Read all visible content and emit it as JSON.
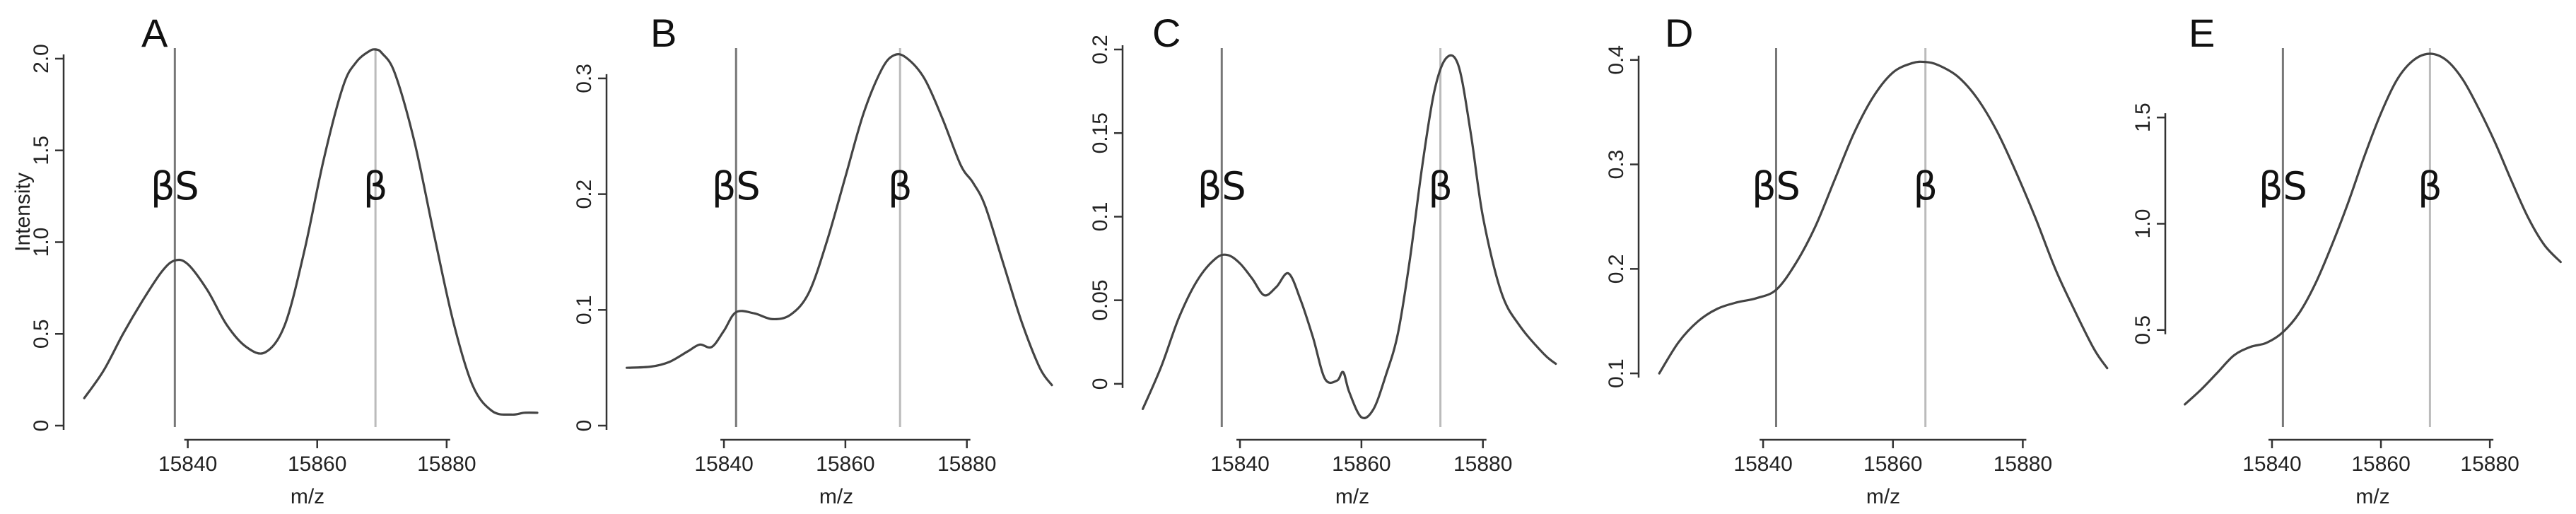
{
  "figure": {
    "ylabel": "Intensity",
    "xlabel": "m/z"
  },
  "colors": {
    "curve": "#444444",
    "beta_s_marker": "#777777",
    "beta_marker": "#bbbbbb"
  },
  "chart_data": [
    {
      "type": "line",
      "panel": "A",
      "title": "",
      "xlabel": "m/z",
      "ylabel": "Intensity",
      "xlim": [
        15823,
        15894
      ],
      "ylim": [
        0,
        2.05
      ],
      "xticks": [
        15840,
        15860,
        15880
      ],
      "yticks": [
        0,
        0.5,
        1.0,
        1.5,
        2.0
      ],
      "ytick_labels": [
        "0",
        "0.5",
        "1.0",
        "1.5",
        "2.0"
      ],
      "markers": [
        {
          "label": "βS",
          "x": 15838,
          "color": "#777777"
        },
        {
          "label": "β",
          "x": 15869,
          "color": "#bbbbbb"
        }
      ],
      "series": [
        {
          "x": [
            15824,
            15827,
            15830,
            15833,
            15836,
            15838,
            15840,
            15843,
            15846,
            15849,
            15852,
            15855,
            15858,
            15861,
            15864,
            15866,
            15868,
            15869,
            15870,
            15872,
            15875,
            15878,
            15881,
            15884,
            15887,
            15890,
            15892,
            15894
          ],
          "y": [
            0.15,
            0.3,
            0.5,
            0.68,
            0.84,
            0.9,
            0.88,
            0.74,
            0.55,
            0.43,
            0.4,
            0.55,
            0.95,
            1.45,
            1.85,
            1.98,
            2.04,
            2.05,
            2.03,
            1.92,
            1.55,
            1.05,
            0.57,
            0.22,
            0.08,
            0.06,
            0.07,
            0.07
          ]
        }
      ]
    },
    {
      "type": "line",
      "panel": "B",
      "title": "",
      "xlabel": "m/z",
      "ylabel": "",
      "xlim": [
        15823,
        15894
      ],
      "ylim": [
        0,
        0.325
      ],
      "xticks": [
        15840,
        15860,
        15880
      ],
      "yticks": [
        0,
        0.1,
        0.2,
        0.3
      ],
      "ytick_labels": [
        "0",
        "0.1",
        "0.2",
        "0.3"
      ],
      "markers": [
        {
          "label": "βS",
          "x": 15842,
          "color": "#777777"
        },
        {
          "label": "β",
          "x": 15869,
          "color": "#bbbbbb"
        }
      ],
      "series": [
        {
          "x": [
            15824,
            15828,
            15831,
            15834,
            15836,
            15838,
            15840,
            15842,
            15845,
            15848,
            15851,
            15854,
            15857,
            15860,
            15863,
            15866,
            15868,
            15870,
            15873,
            15876,
            15879,
            15881,
            15883,
            15886,
            15889,
            15892,
            15894
          ],
          "y": [
            0.05,
            0.051,
            0.055,
            0.064,
            0.07,
            0.068,
            0.082,
            0.098,
            0.097,
            0.092,
            0.096,
            0.115,
            0.16,
            0.215,
            0.27,
            0.308,
            0.32,
            0.318,
            0.3,
            0.265,
            0.225,
            0.21,
            0.19,
            0.14,
            0.09,
            0.05,
            0.035
          ]
        }
      ]
    },
    {
      "type": "line",
      "panel": "C",
      "title": "",
      "xlabel": "m/z",
      "ylabel": "",
      "xlim": [
        15823,
        15894
      ],
      "ylim": [
        -0.025,
        0.2
      ],
      "xticks": [
        15840,
        15860,
        15880
      ],
      "yticks": [
        0,
        0.05,
        0.1,
        0.15,
        0.2
      ],
      "ytick_labels": [
        "0",
        "0.05",
        "0.1",
        "0.15",
        "0.2"
      ],
      "markers": [
        {
          "label": "βS",
          "x": 15837,
          "color": "#777777"
        },
        {
          "label": "β",
          "x": 15873,
          "color": "#bbbbbb"
        }
      ],
      "series": [
        {
          "x": [
            15824,
            15827,
            15830,
            15833,
            15836,
            15838,
            15840,
            15842,
            15844,
            15846,
            15848,
            15850,
            15852,
            15854,
            15856,
            15857,
            15858,
            15860,
            15862,
            15864,
            15866,
            15868,
            15870,
            15872,
            15874,
            15876,
            15878,
            15880,
            15883,
            15886,
            15890,
            15892
          ],
          "y": [
            -0.015,
            0.01,
            0.04,
            0.062,
            0.075,
            0.077,
            0.072,
            0.063,
            0.053,
            0.058,
            0.066,
            0.05,
            0.028,
            0.003,
            0.002,
            0.007,
            -0.005,
            -0.02,
            -0.015,
            0.005,
            0.03,
            0.075,
            0.13,
            0.175,
            0.195,
            0.19,
            0.15,
            0.1,
            0.055,
            0.035,
            0.018,
            0.012
          ]
        }
      ]
    },
    {
      "type": "line",
      "panel": "D",
      "title": "",
      "xlabel": "m/z",
      "ylabel": "",
      "xlim": [
        15823,
        15894
      ],
      "ylim": [
        0.05,
        0.41
      ],
      "xticks": [
        15840,
        15860,
        15880
      ],
      "yticks": [
        0.1,
        0.2,
        0.3,
        0.4
      ],
      "ytick_labels": [
        "0.1",
        "0.2",
        "0.3",
        "0.4"
      ],
      "markers": [
        {
          "label": "βS",
          "x": 15842,
          "color": "#777777"
        },
        {
          "label": "β",
          "x": 15865,
          "color": "#bbbbbb"
        }
      ],
      "series": [
        {
          "x": [
            15824,
            15827,
            15830,
            15833,
            15836,
            15839,
            15842,
            15845,
            15848,
            15851,
            15854,
            15857,
            15860,
            15863,
            15865,
            15867,
            15870,
            15873,
            15876,
            15879,
            15882,
            15885,
            15888,
            15891,
            15893
          ],
          "y": [
            0.1,
            0.13,
            0.15,
            0.162,
            0.168,
            0.172,
            0.18,
            0.205,
            0.24,
            0.285,
            0.33,
            0.365,
            0.388,
            0.397,
            0.398,
            0.395,
            0.384,
            0.363,
            0.332,
            0.292,
            0.248,
            0.2,
            0.16,
            0.123,
            0.105
          ]
        }
      ]
    },
    {
      "type": "line",
      "panel": "E",
      "title": "",
      "xlabel": "m/z",
      "ylabel": "",
      "xlim": [
        15823,
        15894
      ],
      "ylim": [
        0.05,
        1.82
      ],
      "xticks": [
        15840,
        15860,
        15880
      ],
      "yticks": [
        0.5,
        1.0,
        1.5
      ],
      "ytick_labels": [
        "0.5",
        "1.0",
        "1.5"
      ],
      "markers": [
        {
          "label": "βS",
          "x": 15842,
          "color": "#777777"
        },
        {
          "label": "β",
          "x": 15869,
          "color": "#bbbbbb"
        }
      ],
      "series": [
        {
          "x": [
            15824,
            15827,
            15830,
            15833,
            15836,
            15839,
            15842,
            15845,
            15848,
            15851,
            15854,
            15857,
            15860,
            15863,
            15866,
            15869,
            15872,
            15875,
            15878,
            15881,
            15884,
            15887,
            15890,
            15893
          ],
          "y": [
            0.15,
            0.22,
            0.3,
            0.38,
            0.42,
            0.44,
            0.49,
            0.58,
            0.72,
            0.9,
            1.1,
            1.32,
            1.52,
            1.68,
            1.77,
            1.8,
            1.77,
            1.68,
            1.54,
            1.38,
            1.2,
            1.03,
            0.9,
            0.82
          ]
        }
      ]
    }
  ]
}
